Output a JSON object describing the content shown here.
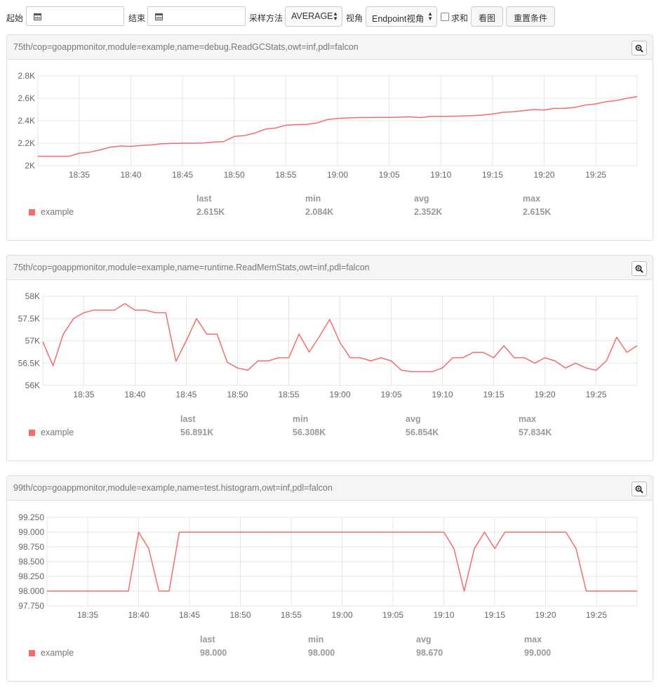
{
  "toolbar": {
    "start_label": "起始",
    "end_label": "结束",
    "sample_label": "采样方法",
    "sample_value": "AVERAGE",
    "view_label": "视角",
    "view_value": "Endpoint视角",
    "sum_label": "求和",
    "view_button": "看图",
    "reset_button": "重置条件"
  },
  "stats_headers": [
    "last",
    "min",
    "avg",
    "max"
  ],
  "colors": {
    "series": "#f76b6b",
    "grid": "#e6e6e6"
  },
  "chart_data": [
    {
      "type": "line",
      "title": "75th/cop=goappmonitor,module=example,name=debug.ReadGCStats,owt=inf,pdl=falcon",
      "x_start": "18:31",
      "x_step_minutes": 1,
      "xticks": [
        "18:35",
        "18:40",
        "18:45",
        "18:50",
        "18:55",
        "19:00",
        "19:05",
        "19:10",
        "19:15",
        "19:20",
        "19:25"
      ],
      "yticks": [
        "2K",
        "2.2K",
        "2.4K",
        "2.6K",
        "2.8K"
      ],
      "ylim": [
        2000,
        2800
      ],
      "series": [
        {
          "name": "example",
          "values": [
            2084,
            2084,
            2084,
            2084,
            2110,
            2120,
            2140,
            2165,
            2175,
            2172,
            2180,
            2185,
            2195,
            2198,
            2200,
            2200,
            2202,
            2210,
            2215,
            2260,
            2268,
            2290,
            2325,
            2335,
            2360,
            2365,
            2368,
            2380,
            2410,
            2420,
            2425,
            2428,
            2428,
            2430,
            2430,
            2432,
            2435,
            2428,
            2438,
            2438,
            2440,
            2442,
            2445,
            2450,
            2460,
            2475,
            2480,
            2490,
            2500,
            2495,
            2510,
            2510,
            2520,
            2540,
            2550,
            2570,
            2580,
            2600,
            2615
          ]
        }
      ],
      "stats": {
        "last": "2.615K",
        "min": "2.084K",
        "avg": "2.352K",
        "max": "2.615K"
      }
    },
    {
      "type": "line",
      "title": "75th/cop=goappmonitor,module=example,name=runtime.ReadMemStats,owt=inf,pdl=falcon",
      "x_start": "18:31",
      "x_step_minutes": 1,
      "xticks": [
        "18:35",
        "18:40",
        "18:45",
        "18:50",
        "18:55",
        "19:00",
        "19:05",
        "19:10",
        "19:15",
        "19:20",
        "19:25"
      ],
      "yticks": [
        "56K",
        "56.5K",
        "57K",
        "57.5K",
        "58K"
      ],
      "ylim": [
        56000,
        58000
      ],
      "series": [
        {
          "name": "example",
          "values": [
            56980,
            56440,
            57150,
            57500,
            57630,
            57690,
            57690,
            57690,
            57834,
            57690,
            57690,
            57630,
            57630,
            56540,
            57000,
            57500,
            57150,
            57150,
            56520,
            56390,
            56340,
            56550,
            56550,
            56620,
            56620,
            57150,
            56750,
            57100,
            57480,
            56960,
            56620,
            56620,
            56550,
            56620,
            56550,
            56340,
            56308,
            56308,
            56308,
            56390,
            56620,
            56620,
            56740,
            56740,
            56620,
            56890,
            56620,
            56620,
            56500,
            56620,
            56550,
            56390,
            56500,
            56390,
            56340,
            56550,
            57080,
            56740,
            56891
          ]
        }
      ],
      "stats": {
        "last": "56.891K",
        "min": "56.308K",
        "avg": "56.854K",
        "max": "57.834K"
      }
    },
    {
      "type": "line",
      "title": "99th/cop=goappmonitor,module=example,name=test.histogram,owt=inf,pdl=falcon",
      "x_start": "18:31",
      "x_step_minutes": 1,
      "xticks": [
        "18:35",
        "18:40",
        "18:45",
        "18:50",
        "18:55",
        "19:00",
        "19:05",
        "19:10",
        "19:15",
        "19:20",
        "19:25"
      ],
      "yticks": [
        "97.750",
        "98.000",
        "98.250",
        "98.500",
        "98.750",
        "99.000",
        "99.250"
      ],
      "ylim": [
        97.75,
        99.25
      ],
      "series": [
        {
          "name": "example",
          "values": [
            98,
            98,
            98,
            98,
            98,
            98,
            98,
            98,
            98,
            99,
            98.72,
            98,
            98,
            99,
            99,
            99,
            99,
            99,
            99,
            99,
            99,
            99,
            99,
            99,
            99,
            99,
            99,
            99,
            99,
            99,
            99,
            99,
            99,
            99,
            99,
            99,
            99,
            99,
            99,
            99,
            98.72,
            98,
            98.72,
            99,
            98.72,
            99,
            99,
            99,
            99,
            99,
            99,
            99,
            98.72,
            98,
            98,
            98,
            98,
            98,
            98
          ]
        }
      ],
      "stats": {
        "last": "98.000",
        "min": "98.000",
        "avg": "98.670",
        "max": "99.000"
      }
    }
  ]
}
